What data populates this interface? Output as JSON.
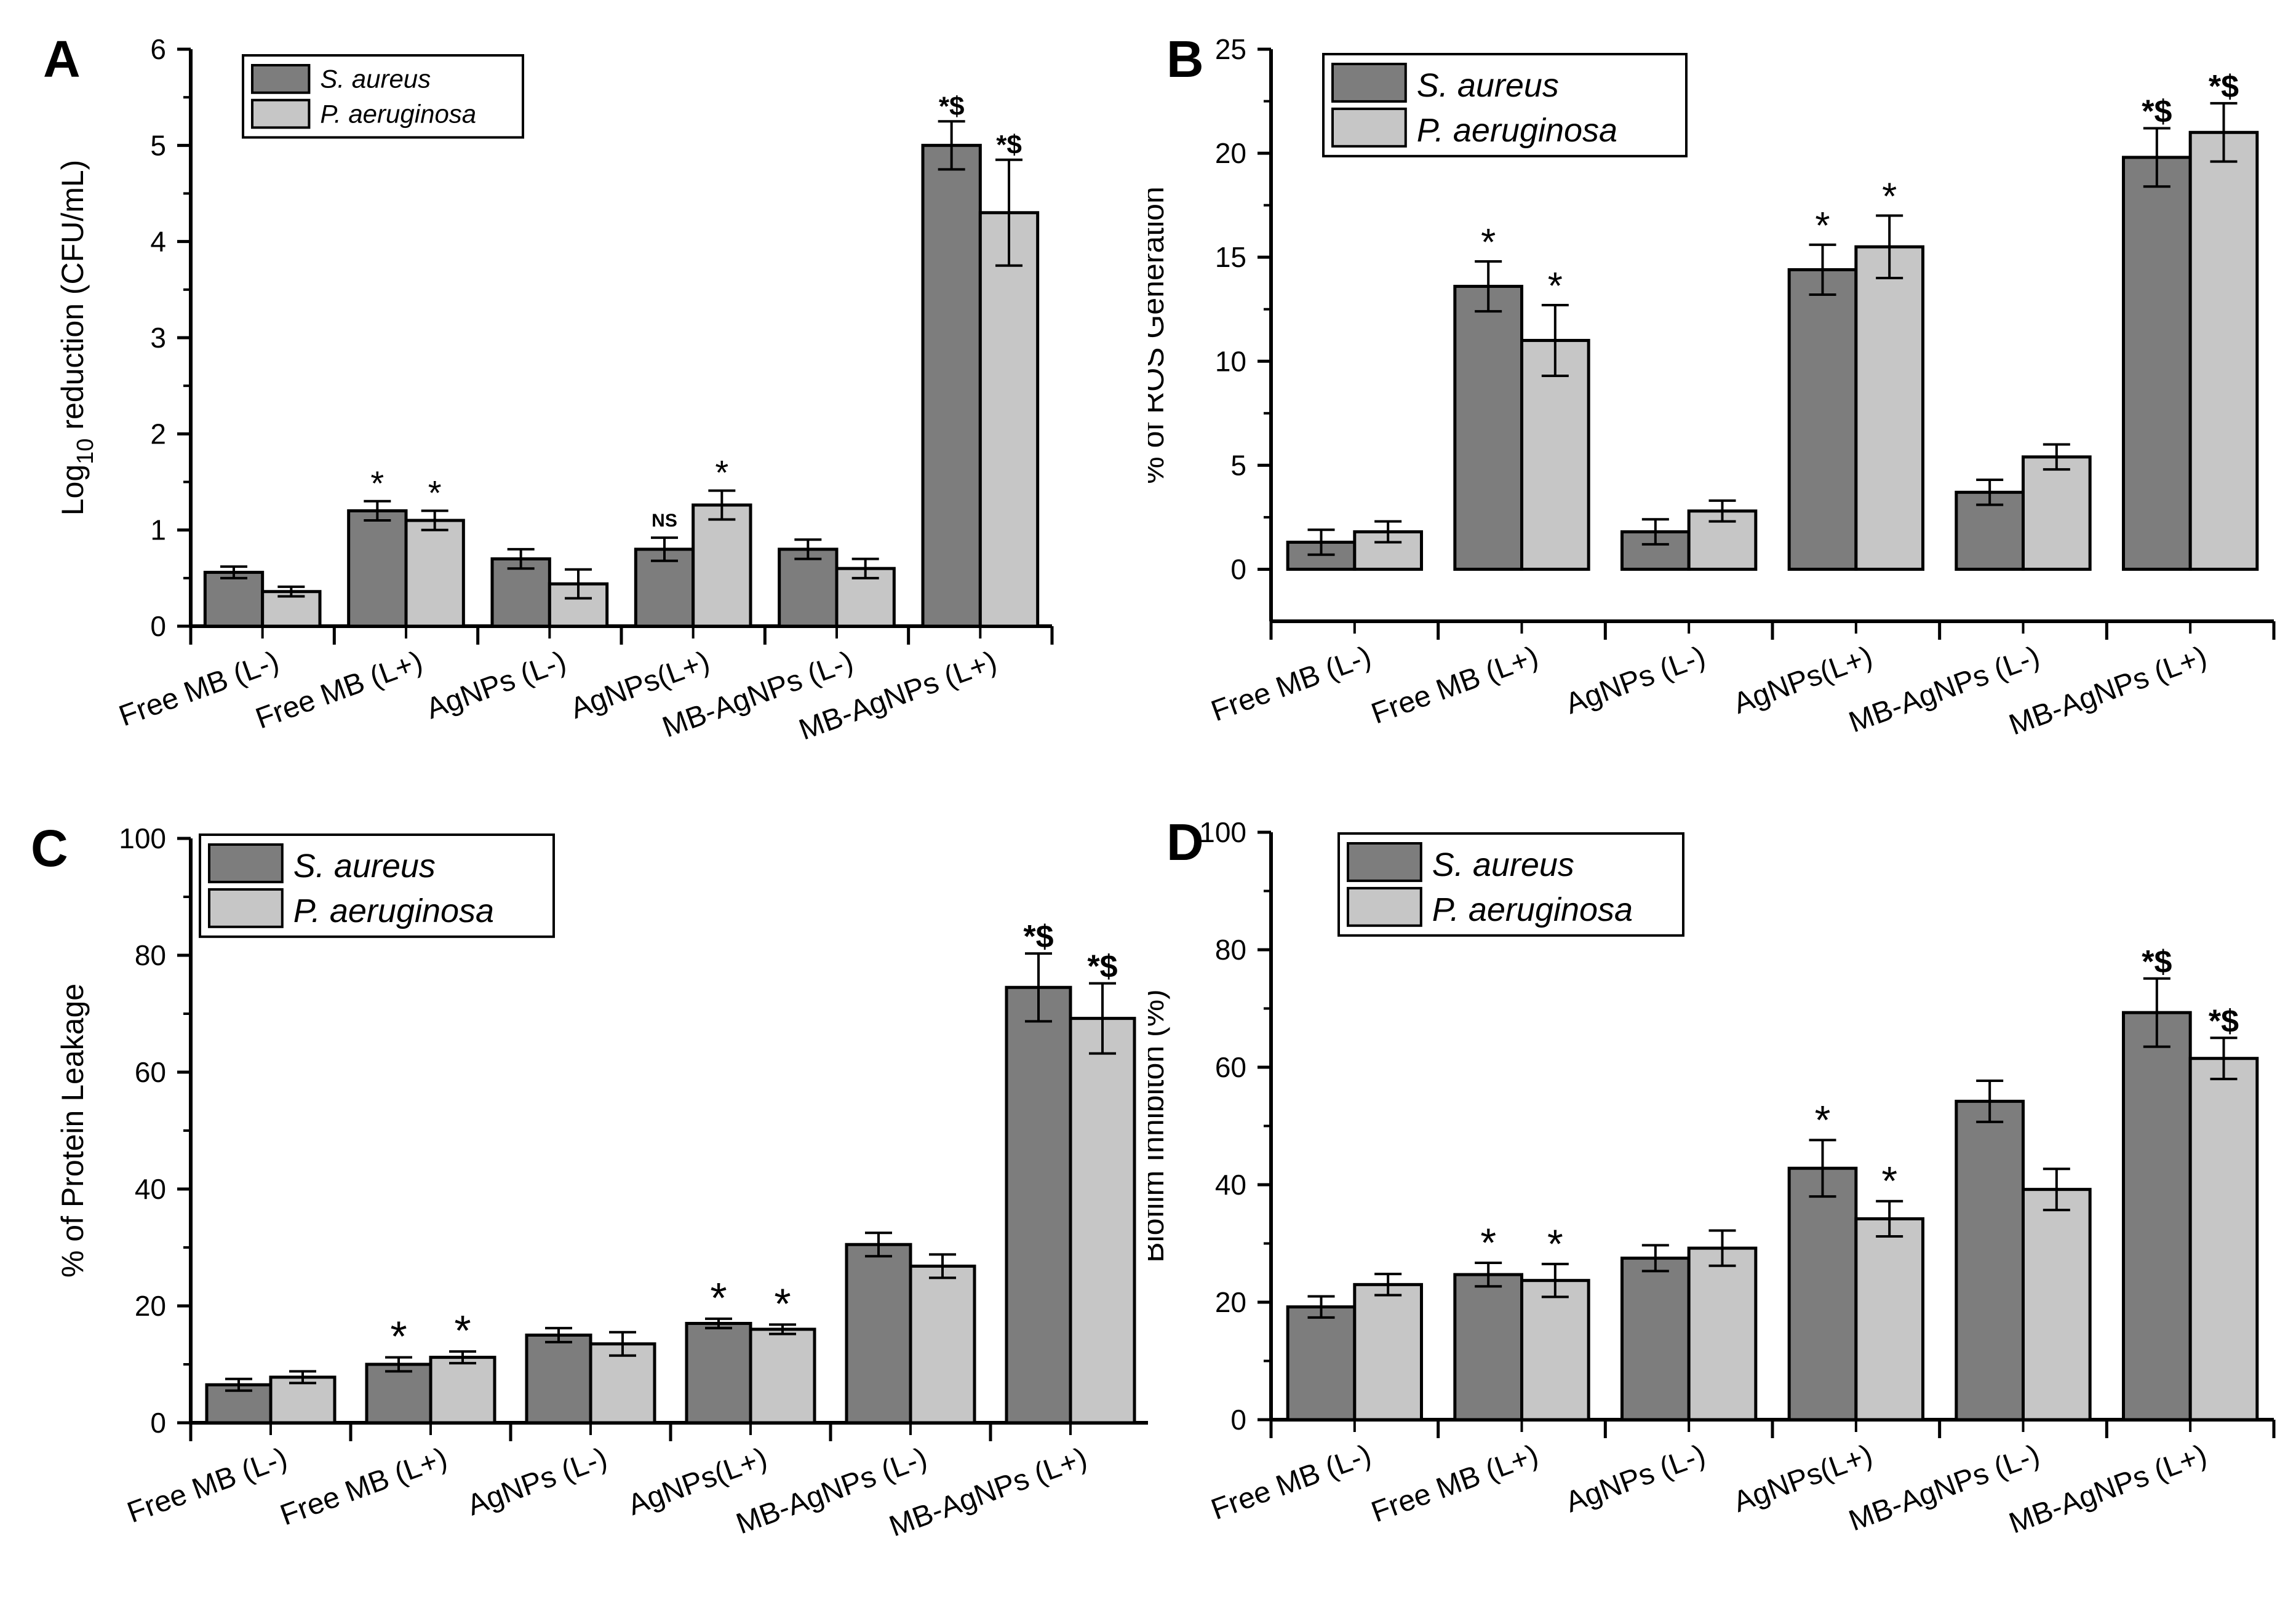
{
  "figure": {
    "colors": {
      "series_1": "#7d7d7d",
      "series_2": "#c6c6c6",
      "axis": "#000000"
    },
    "legend_labels": [
      "S. aureus",
      "P. aeruginosa"
    ]
  },
  "chart_data": [
    {
      "panel_letter": "A",
      "type": "bar",
      "title": "",
      "xlabel": "",
      "ylabel": "Log10 reduction (CFU/mL)",
      "ylabel_main": "Log",
      "ylabel_sub": "10",
      "ylabel_rest": " reduction (CFU/mL)",
      "ylim": [
        0,
        6
      ],
      "yticks": [
        0,
        1,
        2,
        3,
        4,
        5,
        6
      ],
      "categories": [
        "Free MB (L-)",
        "Free MB (L+)",
        "AgNPs (L-)",
        "AgNPs(L+)",
        "MB-AgNPs (L-)",
        "MB-AgNPs (L+)"
      ],
      "series": [
        {
          "name": "S. aureus",
          "values": [
            0.56,
            1.2,
            0.7,
            0.8,
            0.8,
            5.0
          ],
          "errors": [
            0.06,
            0.1,
            0.1,
            0.12,
            0.1,
            0.25
          ],
          "annotations": [
            "",
            "*",
            "",
            "NS",
            "",
            "*$"
          ]
        },
        {
          "name": "P. aeruginosa",
          "values": [
            0.36,
            1.1,
            0.44,
            1.26,
            0.6,
            4.3
          ],
          "errors": [
            0.05,
            0.1,
            0.15,
            0.15,
            0.1,
            0.55
          ],
          "annotations": [
            "",
            "*",
            "",
            "*",
            "",
            "*$"
          ]
        }
      ],
      "legend_position": "top-left",
      "grid": false
    },
    {
      "panel_letter": "B",
      "type": "bar",
      "title": "",
      "xlabel": "",
      "ylabel": "% of ROS Generation",
      "ylim": [
        -2.5,
        25
      ],
      "yticks": [
        0,
        5,
        10,
        15,
        20,
        25
      ],
      "categories": [
        "Free MB (L-)",
        "Free MB (L+)",
        "AgNPs (L-)",
        "AgNPs(L+)",
        "MB-AgNPs (L-)",
        "MB-AgNPs (L+)"
      ],
      "series": [
        {
          "name": "S. aureus",
          "values": [
            1.3,
            13.6,
            1.8,
            14.4,
            3.7,
            19.8
          ],
          "errors": [
            0.6,
            1.2,
            0.6,
            1.2,
            0.6,
            1.4
          ],
          "annotations": [
            "",
            "*",
            "",
            "*",
            "",
            "*$"
          ]
        },
        {
          "name": "P. aeruginosa",
          "values": [
            1.8,
            11.0,
            2.8,
            15.5,
            5.4,
            21.0
          ],
          "errors": [
            0.5,
            1.7,
            0.5,
            1.5,
            0.6,
            1.4
          ],
          "annotations": [
            "",
            "*",
            "",
            "*",
            "",
            "*$"
          ]
        }
      ],
      "legend_position": "top-left",
      "grid": false
    },
    {
      "panel_letter": "C",
      "type": "bar",
      "title": "",
      "xlabel": "",
      "ylabel": "% of Protein Leakage",
      "ylim": [
        0,
        100
      ],
      "yticks": [
        0,
        20,
        40,
        60,
        80,
        100
      ],
      "categories": [
        "Free MB (L-)",
        "Free MB (L+)",
        "AgNPs (L-)",
        "AgNPs(L+)",
        "MB-AgNPs (L-)",
        "MB-AgNPs (L+)"
      ],
      "series": [
        {
          "name": "S. aureus",
          "values": [
            6.5,
            10.0,
            15.0,
            17.0,
            30.5,
            74.5
          ],
          "errors": [
            1.0,
            1.2,
            1.2,
            0.8,
            2.0,
            5.8
          ],
          "annotations": [
            "",
            "*",
            "",
            "*",
            "",
            "*$"
          ]
        },
        {
          "name": "P. aeruginosa",
          "values": [
            7.8,
            11.2,
            13.5,
            16.0,
            26.8,
            69.2
          ],
          "errors": [
            1.0,
            1.0,
            2.0,
            0.8,
            2.0,
            6.0
          ],
          "annotations": [
            "",
            "*",
            "",
            "*",
            "",
            "*$"
          ]
        }
      ],
      "legend_position": "top-left",
      "grid": false
    },
    {
      "panel_letter": "D",
      "type": "bar",
      "title": "",
      "xlabel": "",
      "ylabel": "Biofilm Inhibiton (%)",
      "ylim": [
        0,
        100
      ],
      "yticks": [
        0,
        20,
        40,
        60,
        80,
        100
      ],
      "categories": [
        "Free MB (L-)",
        "Free MB (L+)",
        "AgNPs (L-)",
        "AgNPs(L+)",
        "MB-AgNPs (L-)",
        "MB-AgNPs (L+)"
      ],
      "series": [
        {
          "name": "S. aureus",
          "values": [
            19.2,
            24.7,
            27.5,
            42.8,
            54.2,
            69.3
          ],
          "errors": [
            1.8,
            2.0,
            2.2,
            4.8,
            3.5,
            5.8
          ],
          "annotations": [
            "",
            "*",
            "",
            "*",
            "",
            "*$"
          ]
        },
        {
          "name": "P. aeruginosa",
          "values": [
            23.0,
            23.7,
            29.2,
            34.2,
            39.2,
            61.5
          ],
          "errors": [
            1.8,
            2.8,
            3.0,
            3.0,
            3.5,
            3.5
          ],
          "annotations": [
            "",
            "*",
            "",
            "*",
            "",
            "*$"
          ]
        }
      ],
      "legend_position": "top-left",
      "grid": false
    }
  ]
}
